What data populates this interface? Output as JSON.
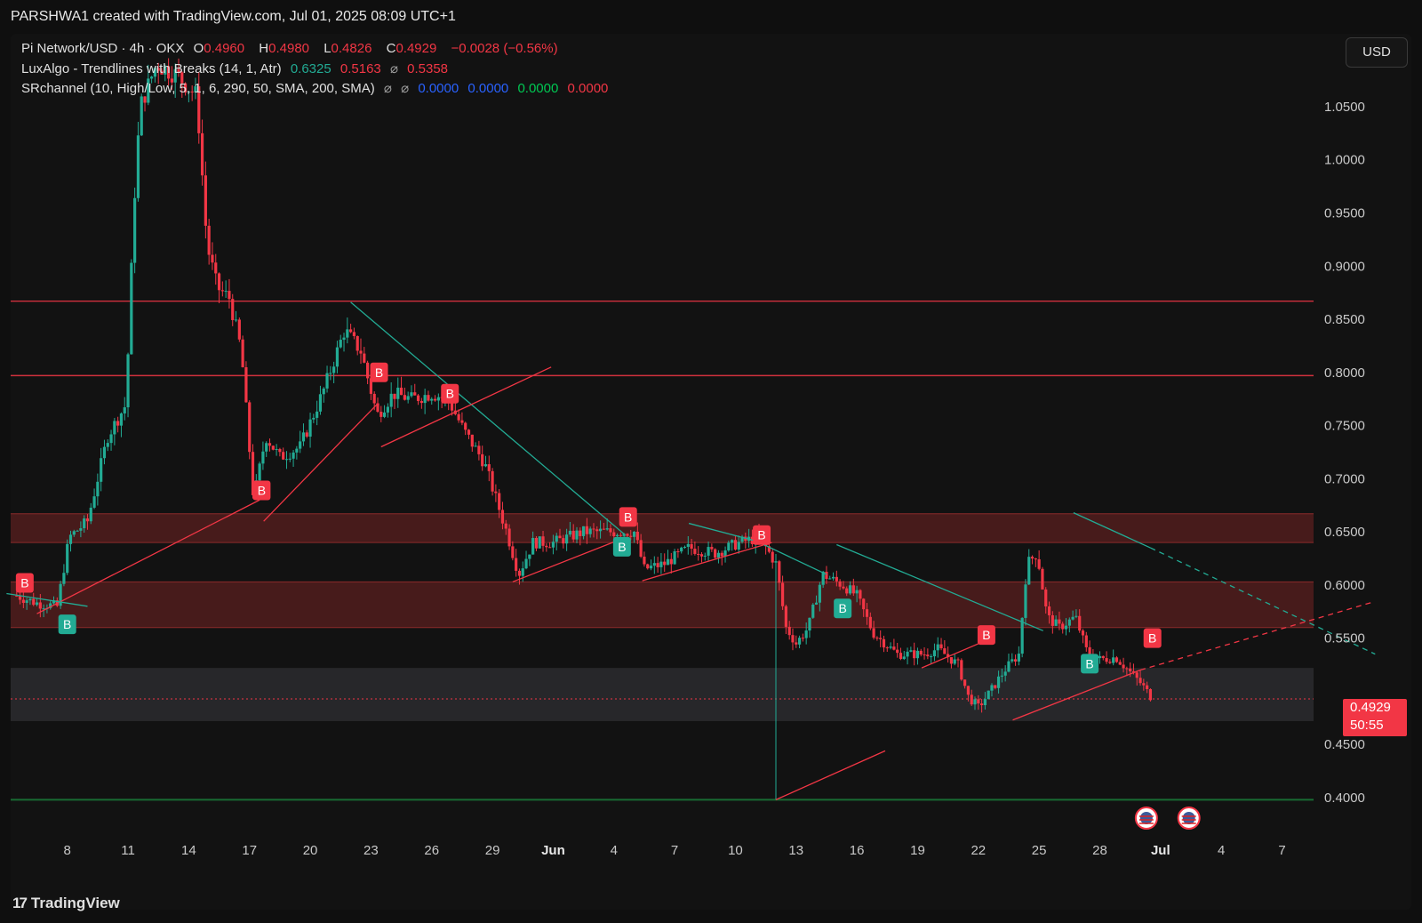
{
  "header": {
    "credit": "PARSHWA1 created with TradingView.com, Jul 01, 2025 08:09 UTC+1"
  },
  "legend": {
    "symbol": "Pi Network/USD · 4h · OKX",
    "open_label": "O",
    "open": "0.4960",
    "high_label": "H",
    "high": "0.4980",
    "low_label": "L",
    "low": "0.4826",
    "close_label": "C",
    "close": "0.4929",
    "change": "−0.0028 (−0.56%)",
    "indicator1_name": "LuxAlgo - Trendlines with Breaks (14, 1, Atr)",
    "indicator1_v1": "0.6325",
    "indicator1_v2": "0.5163",
    "indicator1_sym": "⌀",
    "indicator1_v3": "0.5358",
    "indicator2_name": "SRchannel (10, High/Low, 5, 1, 6, 290, 50, SMA, 200, SMA)",
    "indicator2_sym1": "⌀",
    "indicator2_sym2": "⌀",
    "indicator2_v1": "0.0000",
    "indicator2_v2": "0.0000",
    "indicator2_v3": "0.0000",
    "indicator2_v4": "0.0000"
  },
  "currency_button": "USD",
  "last_price": {
    "value": "0.4929",
    "countdown": "50:55"
  },
  "footer": {
    "brand": "TradingView",
    "mark": "17"
  },
  "colors": {
    "up": "#22ab94",
    "down": "#f23645",
    "zone": "#5a1f1f",
    "grey_zone": "#2a2a2e",
    "support": "#1b7d3a"
  },
  "chart_data": {
    "type": "candlestick",
    "symbol": "Pi Network/USD",
    "timeframe": "4h",
    "ylim": [
      0.39,
      1.09
    ],
    "y_ticks": [
      "1.0500",
      "1.0000",
      "0.9500",
      "0.9000",
      "0.8500",
      "0.8000",
      "0.7500",
      "0.7000",
      "0.6500",
      "0.6000",
      "0.5500",
      "0.4500",
      "0.4000"
    ],
    "x_ticks": [
      "8",
      "11",
      "14",
      "17",
      "20",
      "23",
      "26",
      "29",
      "Jun",
      "4",
      "7",
      "10",
      "13",
      "16",
      "19",
      "22",
      "25",
      "28",
      "Jul",
      "4",
      "7"
    ],
    "price_path": [
      [
        5.5,
        0.59
      ],
      [
        6.5,
        0.583
      ],
      [
        7.5,
        0.58
      ],
      [
        8.1,
        0.645
      ],
      [
        9.0,
        0.66
      ],
      [
        10.0,
        0.74
      ],
      [
        10.9,
        0.77
      ],
      [
        11.3,
        0.96
      ],
      [
        11.6,
        1.05
      ],
      [
        12.4,
        1.09
      ],
      [
        13.4,
        1.08
      ],
      [
        14.4,
        1.06
      ],
      [
        14.9,
        0.92
      ],
      [
        15.4,
        0.88
      ],
      [
        16.0,
        0.87
      ],
      [
        16.6,
        0.82
      ],
      [
        17.2,
        0.68
      ],
      [
        17.8,
        0.74
      ],
      [
        18.5,
        0.72
      ],
      [
        19.5,
        0.73
      ],
      [
        20.6,
        0.78
      ],
      [
        21.7,
        0.84
      ],
      [
        22.5,
        0.82
      ],
      [
        23.3,
        0.76
      ],
      [
        24.1,
        0.78
      ],
      [
        25.0,
        0.775
      ],
      [
        26.0,
        0.78
      ],
      [
        26.8,
        0.775
      ],
      [
        27.6,
        0.745
      ],
      [
        28.6,
        0.715
      ],
      [
        29.7,
        0.65
      ],
      [
        30.3,
        0.61
      ],
      [
        31.0,
        0.64
      ],
      [
        32.0,
        0.64
      ],
      [
        33.5,
        0.65
      ],
      [
        35.2,
        0.65
      ],
      [
        36.0,
        0.65
      ],
      [
        36.5,
        0.615
      ],
      [
        37.5,
        0.62
      ],
      [
        38.7,
        0.635
      ],
      [
        40.0,
        0.63
      ],
      [
        41.2,
        0.64
      ],
      [
        42.2,
        0.645
      ],
      [
        43.0,
        0.62
      ],
      [
        43.5,
        0.56
      ],
      [
        44.0,
        0.545
      ],
      [
        44.6,
        0.56
      ],
      [
        45.3,
        0.61
      ],
      [
        46.3,
        0.6
      ],
      [
        47.0,
        0.59
      ],
      [
        47.8,
        0.555
      ],
      [
        49.0,
        0.535
      ],
      [
        50.3,
        0.535
      ],
      [
        51.0,
        0.54
      ],
      [
        52.0,
        0.525
      ],
      [
        52.5,
        0.495
      ],
      [
        53.0,
        0.485
      ],
      [
        53.6,
        0.5
      ],
      [
        54.3,
        0.52
      ],
      [
        55.0,
        0.535
      ],
      [
        55.4,
        0.62
      ],
      [
        55.9,
        0.63
      ],
      [
        56.4,
        0.57
      ],
      [
        57.0,
        0.56
      ],
      [
        57.8,
        0.57
      ],
      [
        58.4,
        0.535
      ],
      [
        59.0,
        0.53
      ],
      [
        59.8,
        0.532
      ],
      [
        60.4,
        0.52
      ],
      [
        61.0,
        0.508
      ],
      [
        61.6,
        0.493
      ]
    ],
    "horizontal_levels": [
      {
        "name": "resistance-level-1",
        "y": 0.867,
        "color": "#f23645"
      },
      {
        "name": "resistance-level-2",
        "y": 0.797,
        "color": "#f23645"
      },
      {
        "name": "support-level-green",
        "y": 0.398,
        "color": "#1b7d3a"
      }
    ],
    "zones": [
      {
        "name": "sr-zone-upper",
        "y_top": 0.667,
        "y_bottom": 0.64,
        "color": "#5a1f1f"
      },
      {
        "name": "sr-zone-middle",
        "y_top": 0.603,
        "y_bottom": 0.56,
        "color": "#5a1f1f"
      },
      {
        "name": "sr-zone-grey",
        "y_top": 0.522,
        "y_bottom": 0.472,
        "color": "#2a2a2e"
      }
    ],
    "trendlines": [
      {
        "name": "trend-up-1",
        "color": "#f23645",
        "x1": 6.5,
        "y1": 0.573,
        "x2": 17.5,
        "y2": 0.68
      },
      {
        "name": "trend-down-1",
        "color": "#22ab94",
        "x1": 5.0,
        "y1": 0.592,
        "x2": 9.0,
        "y2": 0.58
      },
      {
        "name": "trend-up-2",
        "color": "#f23645",
        "x1": 17.7,
        "y1": 0.66,
        "x2": 23.3,
        "y2": 0.77
      },
      {
        "name": "trend-down-2",
        "color": "#22ab94",
        "x1": 22.0,
        "y1": 0.866,
        "x2": 35.5,
        "y2": 0.648
      },
      {
        "name": "trend-up-3",
        "color": "#f23645",
        "x1": 23.5,
        "y1": 0.73,
        "x2": 31.9,
        "y2": 0.805
      },
      {
        "name": "trend-up-4",
        "color": "#f23645",
        "x1": 30.0,
        "y1": 0.603,
        "x2": 35.6,
        "y2": 0.645
      },
      {
        "name": "trend-up-5",
        "color": "#f23645",
        "x1": 36.4,
        "y1": 0.604,
        "x2": 42.8,
        "y2": 0.64
      },
      {
        "name": "trend-down-3",
        "color": "#22ab94",
        "x1": 38.7,
        "y1": 0.658,
        "x2": 42.3,
        "y2": 0.64
      },
      {
        "name": "trend-down-4",
        "color": "#22ab94",
        "x1": 42.4,
        "y1": 0.638,
        "x2": 45.5,
        "y2": 0.61
      },
      {
        "name": "trend-down-5",
        "color": "#22ab94",
        "x1": 46.0,
        "y1": 0.638,
        "x2": 56.2,
        "y2": 0.557
      },
      {
        "name": "trend-up-6",
        "color": "#f23645",
        "x1": 50.2,
        "y1": 0.522,
        "x2": 53.4,
        "y2": 0.548
      },
      {
        "name": "trend-up-7",
        "color": "#f23645",
        "x1": 43.0,
        "y1": 0.398,
        "x2": 48.4,
        "y2": 0.444
      },
      {
        "name": "trend-up-8",
        "color": "#f23645",
        "x1": 54.7,
        "y1": 0.473,
        "x2": 61.0,
        "y2": 0.52
      },
      {
        "name": "trend-up-8-ext",
        "color": "#f23645",
        "dashed": true,
        "x1": 61.0,
        "y1": 0.52,
        "x2": 72.5,
        "y2": 0.584
      },
      {
        "name": "trend-down-6",
        "color": "#22ab94",
        "x1": 57.7,
        "y1": 0.668,
        "x2": 61.5,
        "y2": 0.635
      },
      {
        "name": "trend-down-6-ext",
        "color": "#22ab94",
        "dashed": true,
        "x1": 61.5,
        "y1": 0.635,
        "x2": 72.6,
        "y2": 0.535
      }
    ],
    "signals": [
      {
        "label": "B",
        "x": 5.9,
        "y": 0.602,
        "color": "#f23645"
      },
      {
        "label": "B",
        "x": 8.0,
        "y": 0.563,
        "color": "#22ab94"
      },
      {
        "label": "B",
        "x": 17.6,
        "y": 0.689,
        "color": "#f23645"
      },
      {
        "label": "B",
        "x": 23.4,
        "y": 0.8,
        "color": "#f23645"
      },
      {
        "label": "B",
        "x": 26.9,
        "y": 0.78,
        "color": "#f23645"
      },
      {
        "label": "B",
        "x": 35.7,
        "y": 0.664,
        "color": "#f23645"
      },
      {
        "label": "B",
        "x": 35.4,
        "y": 0.636,
        "color": "#22ab94"
      },
      {
        "label": "B",
        "x": 42.3,
        "y": 0.647,
        "color": "#f23645"
      },
      {
        "label": "B",
        "x": 46.3,
        "y": 0.578,
        "color": "#22ab94"
      },
      {
        "label": "B",
        "x": 53.4,
        "y": 0.553,
        "color": "#f23645"
      },
      {
        "label": "B",
        "x": 58.5,
        "y": 0.526,
        "color": "#22ab94"
      },
      {
        "label": "B",
        "x": 61.6,
        "y": 0.55,
        "color": "#f23645"
      }
    ],
    "event_markers": [
      {
        "name": "us-flag-event-1",
        "x": 61.3
      },
      {
        "name": "us-flag-event-2",
        "x": 63.4
      }
    ]
  }
}
